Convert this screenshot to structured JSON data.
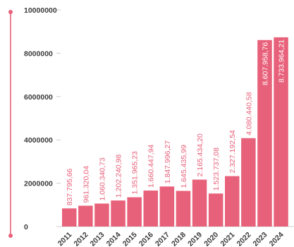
{
  "chart_data": {
    "type": "bar",
    "title": "",
    "xlabel": "",
    "ylabel": "",
    "categories": [
      "2011",
      "2012",
      "2013",
      "2014",
      "2015",
      "2016",
      "2017",
      "2018",
      "2019",
      "2020",
      "2021",
      "2022",
      "2023",
      "2024"
    ],
    "values": [
      837795.66,
      961320.04,
      1060340.73,
      1202240.98,
      1351965.23,
      1660447.94,
      1847996.27,
      1645435.99,
      2165434.2,
      1523737.08,
      2327192.54,
      4080440.58,
      8607958.76,
      8733964.21
    ],
    "value_labels": [
      "837.795,66",
      "961.320,04",
      "1.060.340,73",
      "1.202.240,98",
      "1.351.965,23",
      "1.660.447,94",
      "1.847.996,27",
      "1.645.435,99",
      "2.165.434,20",
      "1.523.737,08",
      "2.327.192,54",
      "4.080.440,58",
      "8.607.958,76",
      "8.733.964,21"
    ],
    "ylim": [
      0,
      10000000
    ],
    "yticks": [
      0,
      2000000,
      4000000,
      6000000,
      8000000,
      10000000
    ],
    "ytick_labels": [
      "0",
      "2000000",
      "4000000",
      "6000000",
      "8000000",
      "10000000"
    ],
    "bar_color": "#e8617a",
    "grid": false,
    "legend": "none"
  }
}
